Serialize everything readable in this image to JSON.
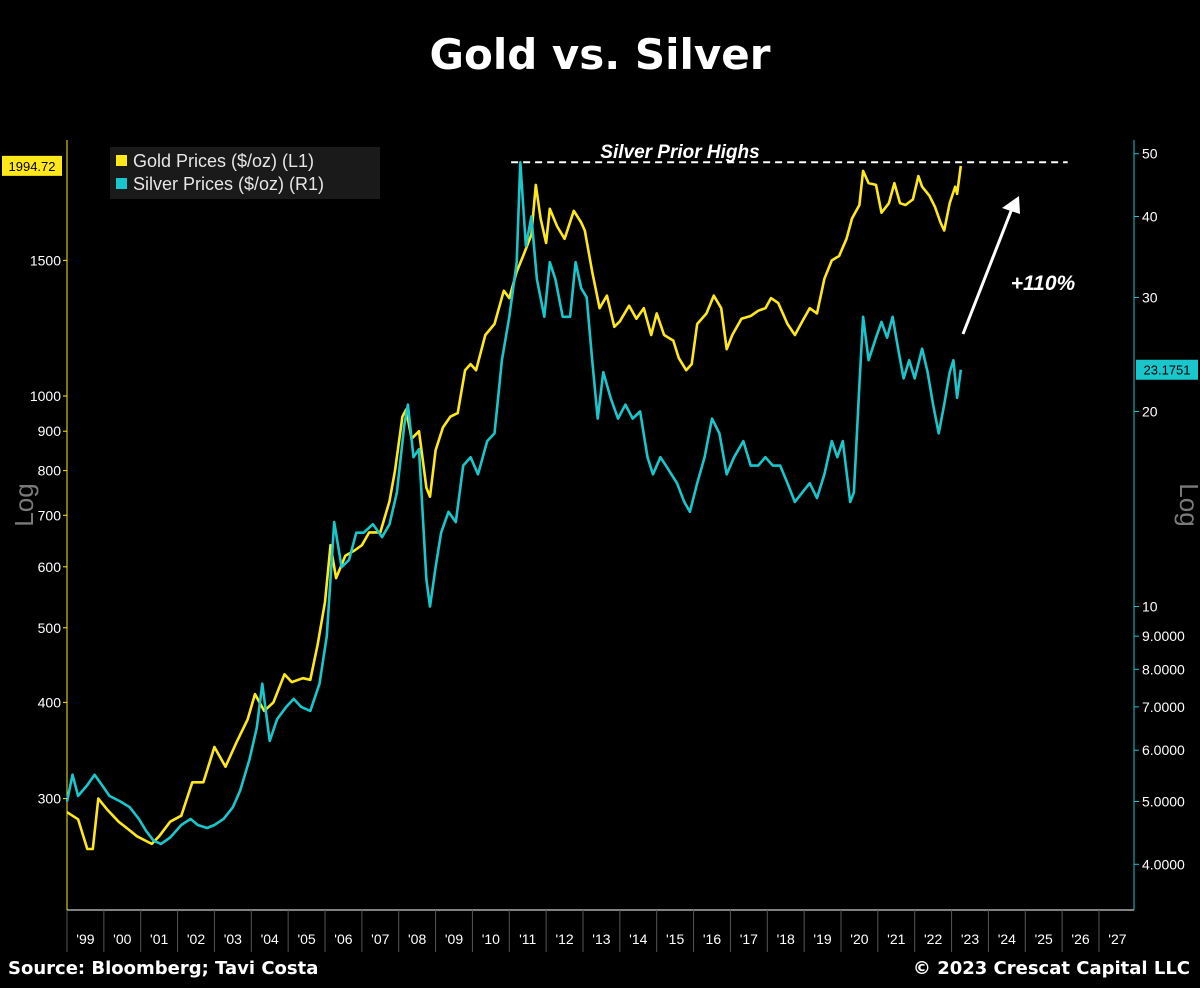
{
  "title": "Gold vs. Silver",
  "source": "Source: Bloomberg; Tavi Costa",
  "copyright": "© 2023 Crescat Capital LLC",
  "colors": {
    "gold": "#ffe81a",
    "silver": "#19c6cc",
    "background": "#000000"
  },
  "chart_data": {
    "type": "line",
    "left_axis": {
      "scale": "log",
      "label": "Log",
      "range": [
        215,
        2150
      ],
      "ticks": [
        300,
        400,
        500,
        600,
        700,
        800,
        900,
        1000,
        1500
      ],
      "tick_labels": [
        "300",
        "400",
        "500",
        "600",
        "700",
        "800",
        "900",
        "1000",
        "1500"
      ]
    },
    "right_axis": {
      "scale": "log",
      "label": "Log",
      "range": [
        3.4,
        52.5
      ],
      "ticks": [
        4,
        5,
        6,
        7,
        8,
        9,
        10,
        20,
        30,
        40,
        50
      ],
      "tick_labels": [
        "4.0000",
        "5.0000",
        "6.0000",
        "7.0000",
        "8.0000",
        "9.0000",
        "10",
        "20",
        "30",
        "40",
        "50"
      ]
    },
    "x_axis": {
      "range": [
        1999.0,
        2027.95
      ],
      "tick_labels": [
        "'99",
        "'00",
        "'01",
        "'02",
        "'03",
        "'04",
        "'05",
        "'06",
        "'07",
        "'08",
        "'09",
        "'10",
        "'11",
        "'12",
        "'13",
        "'14",
        "'15",
        "'16",
        "'17",
        "'18",
        "'19",
        "'20",
        "'21",
        "'22",
        "'23",
        "'24",
        "'25",
        "'26",
        "'27"
      ]
    },
    "legend": {
      "placement": "top-left",
      "entries": [
        "Gold Prices ($/oz) (L1)",
        "Silver Prices ($/oz) (R1)"
      ]
    },
    "last_value_badges": {
      "gold": "1994.72",
      "silver": "23.1751"
    },
    "series": [
      {
        "name": "Gold Prices ($/oz) (L1)",
        "axis": "left",
        "color": "#ffe81a",
        "points": [
          [
            1999.0,
            288
          ],
          [
            1999.3,
            282
          ],
          [
            1999.55,
            258
          ],
          [
            1999.7,
            258
          ],
          [
            1999.85,
            300
          ],
          [
            2000.1,
            290
          ],
          [
            2000.4,
            280
          ],
          [
            2000.65,
            274
          ],
          [
            2000.9,
            268
          ],
          [
            2001.1,
            265
          ],
          [
            2001.3,
            262
          ],
          [
            2001.5,
            268
          ],
          [
            2001.8,
            280
          ],
          [
            2002.1,
            285
          ],
          [
            2002.4,
            315
          ],
          [
            2002.7,
            315
          ],
          [
            2003.0,
            350
          ],
          [
            2003.3,
            330
          ],
          [
            2003.6,
            355
          ],
          [
            2003.9,
            380
          ],
          [
            2004.1,
            410
          ],
          [
            2004.35,
            390
          ],
          [
            2004.6,
            400
          ],
          [
            2004.9,
            435
          ],
          [
            2005.1,
            425
          ],
          [
            2005.4,
            430
          ],
          [
            2005.6,
            428
          ],
          [
            2005.8,
            475
          ],
          [
            2006.0,
            540
          ],
          [
            2006.15,
            640
          ],
          [
            2006.3,
            580
          ],
          [
            2006.55,
            620
          ],
          [
            2006.8,
            630
          ],
          [
            2007.0,
            640
          ],
          [
            2007.2,
            665
          ],
          [
            2007.5,
            665
          ],
          [
            2007.75,
            730
          ],
          [
            2007.9,
            800
          ],
          [
            2008.1,
            940
          ],
          [
            2008.2,
            960
          ],
          [
            2008.35,
            880
          ],
          [
            2008.55,
            900
          ],
          [
            2008.75,
            760
          ],
          [
            2008.85,
            740
          ],
          [
            2009.0,
            850
          ],
          [
            2009.2,
            910
          ],
          [
            2009.4,
            940
          ],
          [
            2009.6,
            950
          ],
          [
            2009.8,
            1080
          ],
          [
            2009.95,
            1100
          ],
          [
            2010.1,
            1080
          ],
          [
            2010.35,
            1200
          ],
          [
            2010.6,
            1240
          ],
          [
            2010.85,
            1370
          ],
          [
            2011.0,
            1340
          ],
          [
            2011.2,
            1450
          ],
          [
            2011.4,
            1530
          ],
          [
            2011.6,
            1620
          ],
          [
            2011.72,
            1880
          ],
          [
            2011.85,
            1700
          ],
          [
            2012.0,
            1580
          ],
          [
            2012.1,
            1750
          ],
          [
            2012.3,
            1660
          ],
          [
            2012.5,
            1600
          ],
          [
            2012.75,
            1740
          ],
          [
            2012.95,
            1680
          ],
          [
            2013.05,
            1640
          ],
          [
            2013.25,
            1450
          ],
          [
            2013.45,
            1300
          ],
          [
            2013.65,
            1350
          ],
          [
            2013.85,
            1230
          ],
          [
            2014.0,
            1250
          ],
          [
            2014.25,
            1310
          ],
          [
            2014.45,
            1260
          ],
          [
            2014.65,
            1300
          ],
          [
            2014.85,
            1200
          ],
          [
            2015.0,
            1280
          ],
          [
            2015.2,
            1200
          ],
          [
            2015.45,
            1180
          ],
          [
            2015.6,
            1120
          ],
          [
            2015.8,
            1080
          ],
          [
            2015.95,
            1100
          ],
          [
            2016.1,
            1240
          ],
          [
            2016.35,
            1280
          ],
          [
            2016.55,
            1350
          ],
          [
            2016.75,
            1300
          ],
          [
            2016.9,
            1150
          ],
          [
            2017.05,
            1200
          ],
          [
            2017.3,
            1260
          ],
          [
            2017.55,
            1270
          ],
          [
            2017.75,
            1290
          ],
          [
            2017.95,
            1300
          ],
          [
            2018.1,
            1340
          ],
          [
            2018.3,
            1320
          ],
          [
            2018.55,
            1240
          ],
          [
            2018.75,
            1200
          ],
          [
            2018.95,
            1250
          ],
          [
            2019.15,
            1300
          ],
          [
            2019.35,
            1280
          ],
          [
            2019.55,
            1420
          ],
          [
            2019.75,
            1500
          ],
          [
            2019.95,
            1520
          ],
          [
            2020.15,
            1600
          ],
          [
            2020.3,
            1700
          ],
          [
            2020.5,
            1770
          ],
          [
            2020.6,
            1960
          ],
          [
            2020.75,
            1890
          ],
          [
            2020.95,
            1880
          ],
          [
            2021.1,
            1730
          ],
          [
            2021.3,
            1780
          ],
          [
            2021.45,
            1890
          ],
          [
            2021.6,
            1780
          ],
          [
            2021.75,
            1770
          ],
          [
            2021.95,
            1800
          ],
          [
            2022.1,
            1930
          ],
          [
            2022.2,
            1870
          ],
          [
            2022.4,
            1820
          ],
          [
            2022.55,
            1760
          ],
          [
            2022.7,
            1680
          ],
          [
            2022.8,
            1640
          ],
          [
            2022.95,
            1780
          ],
          [
            2023.1,
            1870
          ],
          [
            2023.15,
            1830
          ],
          [
            2023.25,
            1990
          ]
        ]
      },
      {
        "name": "Silver Prices ($/oz) (R1)",
        "axis": "right",
        "color": "#19c6cc",
        "points": [
          [
            1999.0,
            5.0
          ],
          [
            1999.15,
            5.5
          ],
          [
            1999.3,
            5.1
          ],
          [
            1999.55,
            5.3
          ],
          [
            1999.75,
            5.5
          ],
          [
            1999.95,
            5.3
          ],
          [
            2000.15,
            5.1
          ],
          [
            2000.45,
            5.0
          ],
          [
            2000.7,
            4.9
          ],
          [
            2000.95,
            4.7
          ],
          [
            2001.15,
            4.5
          ],
          [
            2001.35,
            4.35
          ],
          [
            2001.55,
            4.3
          ],
          [
            2001.8,
            4.4
          ],
          [
            2002.1,
            4.6
          ],
          [
            2002.35,
            4.7
          ],
          [
            2002.55,
            4.6
          ],
          [
            2002.8,
            4.55
          ],
          [
            2003.0,
            4.6
          ],
          [
            2003.25,
            4.7
          ],
          [
            2003.5,
            4.9
          ],
          [
            2003.7,
            5.2
          ],
          [
            2003.95,
            5.8
          ],
          [
            2004.15,
            6.5
          ],
          [
            2004.3,
            7.6
          ],
          [
            2004.5,
            6.2
          ],
          [
            2004.7,
            6.7
          ],
          [
            2004.95,
            7.0
          ],
          [
            2005.15,
            7.2
          ],
          [
            2005.35,
            7.0
          ],
          [
            2005.6,
            6.9
          ],
          [
            2005.85,
            7.6
          ],
          [
            2006.05,
            9.0
          ],
          [
            2006.25,
            13.5
          ],
          [
            2006.45,
            11.5
          ],
          [
            2006.65,
            11.8
          ],
          [
            2006.85,
            13.0
          ],
          [
            2007.05,
            13.0
          ],
          [
            2007.3,
            13.4
          ],
          [
            2007.55,
            12.8
          ],
          [
            2007.75,
            13.4
          ],
          [
            2007.95,
            15.0
          ],
          [
            2008.15,
            19.0
          ],
          [
            2008.25,
            20.5
          ],
          [
            2008.4,
            17.0
          ],
          [
            2008.55,
            17.5
          ],
          [
            2008.75,
            11.0
          ],
          [
            2008.85,
            10.0
          ],
          [
            2009.0,
            11.5
          ],
          [
            2009.15,
            13.0
          ],
          [
            2009.35,
            14.0
          ],
          [
            2009.55,
            13.5
          ],
          [
            2009.75,
            16.5
          ],
          [
            2009.95,
            17.0
          ],
          [
            2010.15,
            16.0
          ],
          [
            2010.4,
            18.0
          ],
          [
            2010.6,
            18.5
          ],
          [
            2010.8,
            24.0
          ],
          [
            2011.0,
            28.0
          ],
          [
            2011.2,
            34.0
          ],
          [
            2011.3,
            48.5
          ],
          [
            2011.45,
            36.0
          ],
          [
            2011.6,
            40.0
          ],
          [
            2011.75,
            32.0
          ],
          [
            2011.95,
            28.0
          ],
          [
            2012.1,
            34.0
          ],
          [
            2012.25,
            32.0
          ],
          [
            2012.45,
            28.0
          ],
          [
            2012.65,
            28.0
          ],
          [
            2012.8,
            34.0
          ],
          [
            2012.95,
            31.0
          ],
          [
            2013.1,
            30.0
          ],
          [
            2013.25,
            24.0
          ],
          [
            2013.4,
            19.5
          ],
          [
            2013.55,
            23.0
          ],
          [
            2013.75,
            21.0
          ],
          [
            2013.95,
            19.5
          ],
          [
            2014.15,
            20.5
          ],
          [
            2014.35,
            19.5
          ],
          [
            2014.55,
            20.0
          ],
          [
            2014.75,
            17.0
          ],
          [
            2014.9,
            16.0
          ],
          [
            2015.1,
            17.0
          ],
          [
            2015.25,
            16.5
          ],
          [
            2015.4,
            16.0
          ],
          [
            2015.55,
            15.5
          ],
          [
            2015.75,
            14.5
          ],
          [
            2015.9,
            14.0
          ],
          [
            2016.1,
            15.5
          ],
          [
            2016.3,
            17.0
          ],
          [
            2016.5,
            19.5
          ],
          [
            2016.7,
            18.5
          ],
          [
            2016.9,
            16.0
          ],
          [
            2017.1,
            17.0
          ],
          [
            2017.35,
            18.0
          ],
          [
            2017.55,
            16.5
          ],
          [
            2017.75,
            16.5
          ],
          [
            2017.95,
            17.0
          ],
          [
            2018.15,
            16.5
          ],
          [
            2018.35,
            16.5
          ],
          [
            2018.55,
            15.5
          ],
          [
            2018.75,
            14.5
          ],
          [
            2018.95,
            15.0
          ],
          [
            2019.15,
            15.5
          ],
          [
            2019.35,
            14.7
          ],
          [
            2019.55,
            16.0
          ],
          [
            2019.75,
            18.0
          ],
          [
            2019.9,
            17.0
          ],
          [
            2020.05,
            18.0
          ],
          [
            2020.25,
            14.5
          ],
          [
            2020.35,
            15.0
          ],
          [
            2020.5,
            22.0
          ],
          [
            2020.6,
            28.0
          ],
          [
            2020.75,
            24.0
          ],
          [
            2020.95,
            26.0
          ],
          [
            2021.1,
            27.5
          ],
          [
            2021.25,
            26.0
          ],
          [
            2021.4,
            28.0
          ],
          [
            2021.55,
            25.0
          ],
          [
            2021.7,
            22.5
          ],
          [
            2021.85,
            24.0
          ],
          [
            2022.0,
            22.5
          ],
          [
            2022.2,
            25.0
          ],
          [
            2022.35,
            23.0
          ],
          [
            2022.5,
            20.5
          ],
          [
            2022.65,
            18.5
          ],
          [
            2022.8,
            20.5
          ],
          [
            2022.95,
            23.0
          ],
          [
            2023.05,
            24.0
          ],
          [
            2023.15,
            21.0
          ],
          [
            2023.25,
            23.2
          ]
        ]
      }
    ],
    "annotations": [
      {
        "text": "Silver Prior Highs",
        "style": "dashed line at prior silver high",
        "value": 48.5
      },
      {
        "text": "+110%",
        "style": "arrow pointing up-right toward prior high"
      }
    ]
  }
}
